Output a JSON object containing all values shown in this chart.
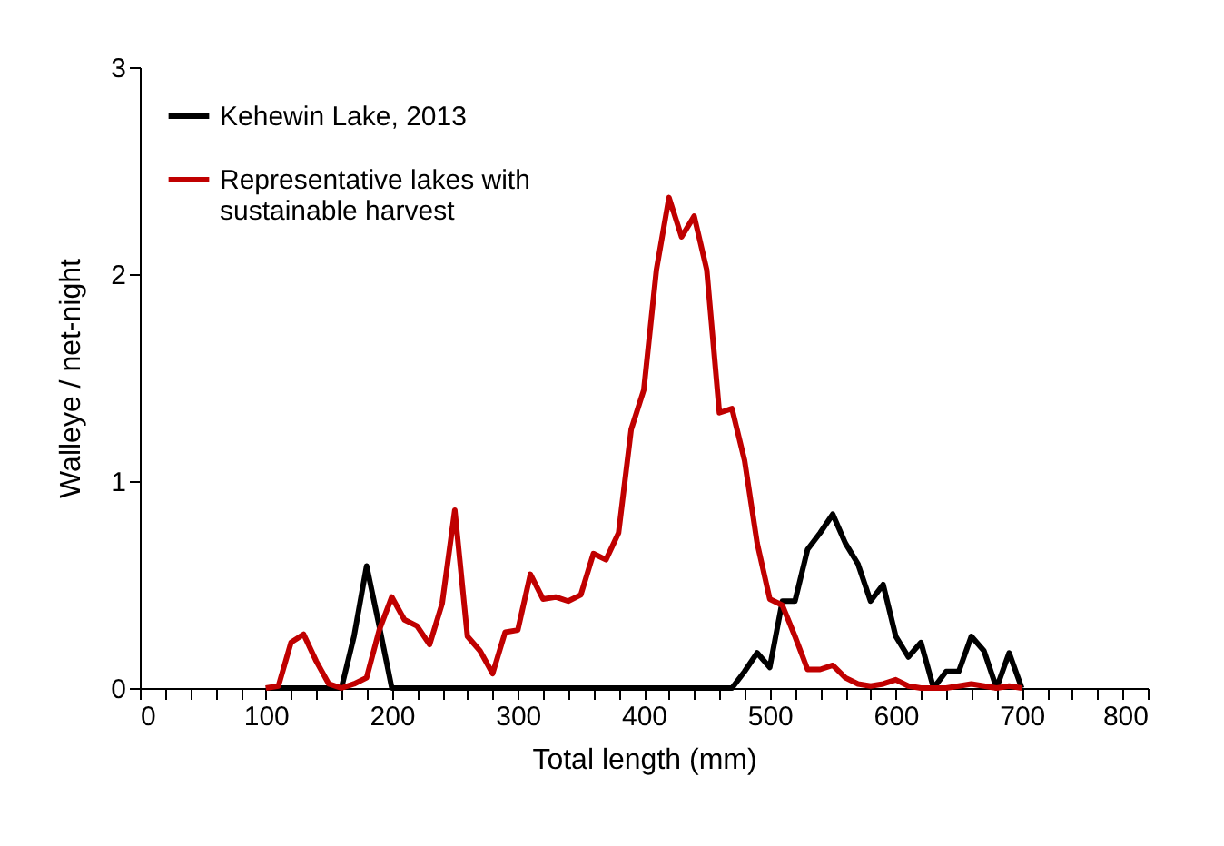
{
  "chart_data": {
    "type": "line",
    "xlabel": "Total length (mm)",
    "ylabel": "Walleye / net-night",
    "x": [
      100,
      110,
      120,
      130,
      140,
      150,
      160,
      170,
      180,
      190,
      200,
      210,
      220,
      230,
      240,
      250,
      260,
      270,
      280,
      290,
      300,
      310,
      320,
      330,
      340,
      350,
      360,
      370,
      380,
      390,
      400,
      410,
      420,
      430,
      440,
      450,
      460,
      470,
      480,
      490,
      500,
      510,
      520,
      530,
      540,
      550,
      560,
      570,
      580,
      590,
      600,
      610,
      620,
      630,
      640,
      650,
      660,
      670,
      680,
      690,
      700
    ],
    "series": [
      {
        "name": "Kehewin Lake, 2013",
        "color": "#000000",
        "values": [
          0,
          0,
          0,
          0,
          0,
          0,
          0,
          0.25,
          0.59,
          0.3,
          0,
          0,
          0,
          0,
          0,
          0,
          0,
          0,
          0,
          0,
          0,
          0,
          0,
          0,
          0,
          0,
          0,
          0,
          0,
          0,
          0,
          0,
          0,
          0,
          0,
          0,
          0,
          0,
          0.08,
          0.17,
          0.1,
          0.42,
          0.42,
          0.67,
          0.75,
          0.84,
          0.7,
          0.6,
          0.42,
          0.5,
          0.25,
          0.15,
          0.22,
          0,
          0.08,
          0.08,
          0.25,
          0.18,
          0,
          0.17,
          0
        ]
      },
      {
        "name": "Representative lakes with sustainable harvest",
        "color": "#c00000",
        "values": [
          0,
          0.01,
          0.22,
          0.26,
          0.13,
          0.02,
          0,
          0.02,
          0.05,
          0.28,
          0.44,
          0.33,
          0.3,
          0.21,
          0.41,
          0.86,
          0.25,
          0.18,
          0.07,
          0.27,
          0.28,
          0.55,
          0.43,
          0.44,
          0.42,
          0.45,
          0.65,
          0.62,
          0.75,
          1.25,
          1.44,
          2.02,
          2.37,
          2.18,
          2.28,
          2.02,
          1.33,
          1.35,
          1.1,
          0.7,
          0.43,
          0.4,
          0.25,
          0.09,
          0.09,
          0.11,
          0.05,
          0.02,
          0.01,
          0.02,
          0.04,
          0.01,
          0,
          0,
          0,
          0.01,
          0.02,
          0.01,
          0,
          0.01,
          0
        ]
      }
    ],
    "xlim": [
      0,
      800
    ],
    "xticks": [
      0,
      {
        "value": 20,
        "label": null
      },
      {
        "value": 40,
        "label": null
      },
      {
        "value": 60,
        "label": null
      },
      {
        "value": 80,
        "label": null
      },
      100,
      {
        "value": 120,
        "label": null
      },
      {
        "value": 140,
        "label": null
      },
      {
        "value": 160,
        "label": null
      },
      {
        "value": 180,
        "label": null
      },
      200,
      {
        "value": 220,
        "label": null
      },
      {
        "value": 240,
        "label": null
      },
      {
        "value": 260,
        "label": null
      },
      {
        "value": 280,
        "label": null
      },
      300,
      {
        "value": 320,
        "label": null
      },
      {
        "value": 340,
        "label": null
      },
      {
        "value": 360,
        "label": null
      },
      {
        "value": 380,
        "label": null
      },
      400,
      {
        "value": 420,
        "label": null
      },
      {
        "value": 440,
        "label": null
      },
      {
        "value": 460,
        "label": null
      },
      {
        "value": 480,
        "label": null
      },
      500,
      {
        "value": 520,
        "label": null
      },
      {
        "value": 540,
        "label": null
      },
      {
        "value": 560,
        "label": null
      },
      {
        "value": 580,
        "label": null
      },
      600,
      {
        "value": 620,
        "label": null
      },
      {
        "value": 640,
        "label": null
      },
      {
        "value": 660,
        "label": null
      },
      {
        "value": 680,
        "label": null
      },
      700,
      {
        "value": 720,
        "label": null
      },
      {
        "value": 740,
        "label": null
      },
      {
        "value": 760,
        "label": null
      },
      {
        "value": 780,
        "label": null
      },
      800
    ],
    "ylim": [
      0,
      3
    ],
    "yticks": [
      0,
      1,
      2,
      3
    ],
    "grid": false,
    "legend": "top left"
  }
}
